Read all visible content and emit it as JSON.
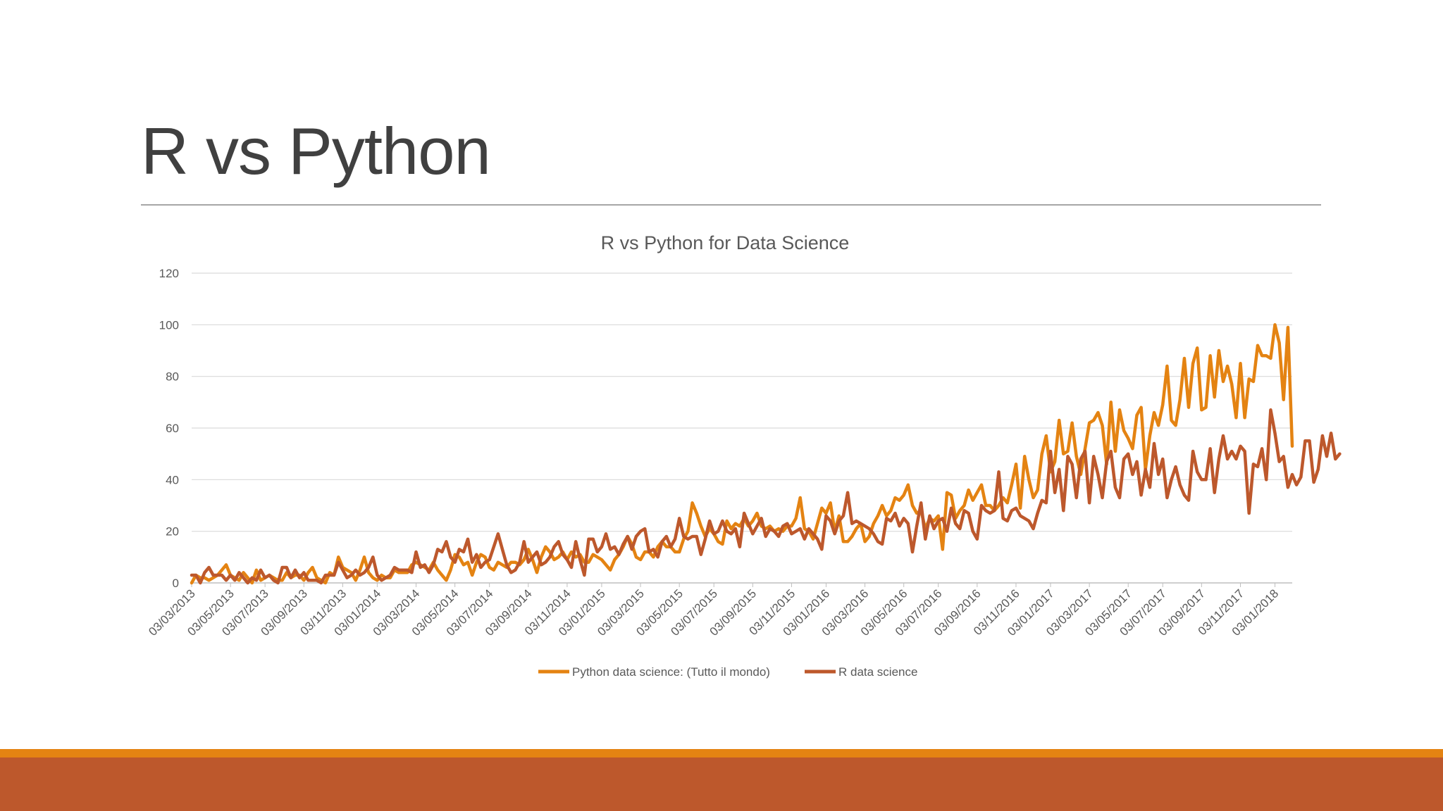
{
  "slide": {
    "title": "R vs Python"
  },
  "colors": {
    "python": "#e48312",
    "r": "#bd582c",
    "grid": "#d9d9d9",
    "text": "#595959"
  },
  "chart_data": {
    "type": "line",
    "title": "R vs Python for Data Science",
    "xlabel": "",
    "ylabel": "",
    "ylim": [
      0,
      120
    ],
    "yticks": [
      0,
      20,
      40,
      60,
      80,
      100,
      120
    ],
    "grid": true,
    "legend": "bottom",
    "xticks": [
      "03/03/2013",
      "03/05/2013",
      "03/07/2013",
      "03/09/2013",
      "03/11/2013",
      "03/01/2014",
      "03/03/2014",
      "03/05/2014",
      "03/07/2014",
      "03/09/2014",
      "03/11/2014",
      "03/01/2015",
      "03/03/2015",
      "03/05/2015",
      "03/07/2015",
      "03/09/2015",
      "03/11/2015",
      "03/01/2016",
      "03/03/2016",
      "03/05/2016",
      "03/07/2016",
      "03/09/2016",
      "03/11/2016",
      "03/01/2017",
      "03/03/2017",
      "03/05/2017",
      "03/07/2017",
      "03/09/2017",
      "03/11/2017",
      "03/01/2018"
    ],
    "x_start": "03/03/2013",
    "x_step": "1 week",
    "series": [
      {
        "name": "Python data science: (Tutto il mondo)",
        "color": "#e48312",
        "values": [
          0,
          3,
          2,
          2,
          1,
          2,
          3,
          5,
          7,
          3,
          2,
          1,
          4,
          2,
          0,
          5,
          1,
          2,
          3,
          2,
          1,
          1,
          4,
          2,
          3,
          3,
          1,
          4,
          6,
          2,
          1,
          0,
          4,
          3,
          10,
          6,
          5,
          4,
          1,
          5,
          10,
          4,
          2,
          1,
          3,
          2,
          2,
          5,
          4,
          4,
          4,
          7,
          8,
          7,
          6,
          5,
          8,
          5,
          3,
          1,
          5,
          11,
          10,
          7,
          8,
          3,
          8,
          11,
          10,
          6,
          5,
          8,
          7,
          6,
          8,
          8,
          7,
          9,
          13,
          9,
          4,
          10,
          14,
          12,
          9,
          10,
          12,
          9,
          12,
          10,
          11,
          8,
          8,
          11,
          10,
          9,
          7,
          5,
          9,
          11,
          14,
          18,
          15,
          10,
          9,
          12,
          12,
          10,
          14,
          16,
          14,
          14,
          12,
          12,
          17,
          20,
          31,
          27,
          22,
          18,
          21,
          19,
          16,
          15,
          24,
          21,
          23,
          22,
          25,
          22,
          24,
          27,
          22,
          21,
          22,
          20,
          21,
          20,
          22,
          22,
          25,
          33,
          21,
          20,
          17,
          23,
          29,
          27,
          31,
          20,
          26,
          16,
          16,
          18,
          21,
          23,
          16,
          18,
          23,
          26,
          30,
          26,
          28,
          33,
          32,
          34,
          38,
          30,
          27,
          28,
          21,
          25,
          24,
          26,
          13,
          35,
          34,
          25,
          28,
          30,
          36,
          32,
          35,
          38,
          30,
          30,
          28,
          30,
          33,
          31,
          38,
          46,
          29,
          49,
          40,
          33,
          36,
          50,
          57,
          43,
          47,
          63,
          50,
          51,
          62,
          49,
          42,
          52,
          62,
          63,
          66,
          61,
          46,
          70,
          51,
          67,
          59,
          56,
          52,
          65,
          68,
          44,
          57,
          66,
          61,
          69,
          84,
          63,
          61,
          71,
          87,
          68,
          85,
          91,
          67,
          68,
          88,
          72,
          90,
          78,
          84,
          77,
          64,
          85,
          64,
          79,
          78,
          92,
          88,
          88,
          87,
          100,
          93,
          71,
          99,
          53
        ]
      },
      {
        "name": "R data science",
        "color": "#bd582c",
        "values": [
          3,
          3,
          0,
          4,
          6,
          3,
          3,
          3,
          1,
          3,
          1,
          4,
          2,
          0,
          2,
          1,
          5,
          2,
          3,
          1,
          0,
          6,
          6,
          2,
          5,
          2,
          4,
          1,
          1,
          1,
          0,
          3,
          3,
          3,
          8,
          5,
          2,
          3,
          5,
          3,
          4,
          6,
          10,
          3,
          1,
          2,
          3,
          6,
          5,
          5,
          5,
          4,
          12,
          6,
          7,
          4,
          7,
          13,
          12,
          16,
          10,
          8,
          13,
          12,
          17,
          8,
          11,
          6,
          8,
          9,
          14,
          19,
          13,
          7,
          4,
          5,
          8,
          16,
          8,
          10,
          12,
          7,
          8,
          10,
          14,
          16,
          11,
          9,
          6,
          16,
          9,
          3,
          17,
          17,
          12,
          14,
          19,
          13,
          14,
          11,
          15,
          18,
          13,
          18,
          20,
          21,
          12,
          13,
          10,
          16,
          18,
          14,
          17,
          25,
          18,
          17,
          18,
          18,
          11,
          17,
          24,
          19,
          20,
          24,
          20,
          19,
          21,
          14,
          27,
          23,
          19,
          22,
          25,
          18,
          21,
          20,
          18,
          22,
          23,
          19,
          20,
          21,
          17,
          21,
          19,
          17,
          13,
          26,
          24,
          19,
          24,
          26,
          35,
          23,
          24,
          23,
          22,
          21,
          19,
          16,
          15,
          25,
          24,
          27,
          22,
          25,
          23,
          12,
          22,
          31,
          17,
          26,
          21,
          24,
          25,
          20,
          29,
          23,
          21,
          28,
          27,
          20,
          17,
          30,
          28,
          27,
          28,
          43,
          25,
          24,
          28,
          29,
          26,
          25,
          24,
          21,
          27,
          32,
          31,
          51,
          35,
          44,
          28,
          49,
          46,
          33,
          48,
          51,
          31,
          49,
          42,
          33,
          47,
          51,
          37,
          33,
          48,
          50,
          42,
          47,
          34,
          44,
          37,
          54,
          42,
          48,
          33,
          40,
          45,
          38,
          34,
          32,
          51,
          43,
          40,
          40,
          52,
          35,
          48,
          57,
          48,
          51,
          48,
          53,
          51,
          27,
          46,
          45,
          52,
          40,
          67,
          58,
          47,
          49,
          37,
          42,
          38,
          41,
          55,
          55,
          39,
          44,
          57,
          49,
          58,
          48,
          50
        ]
      }
    ]
  }
}
